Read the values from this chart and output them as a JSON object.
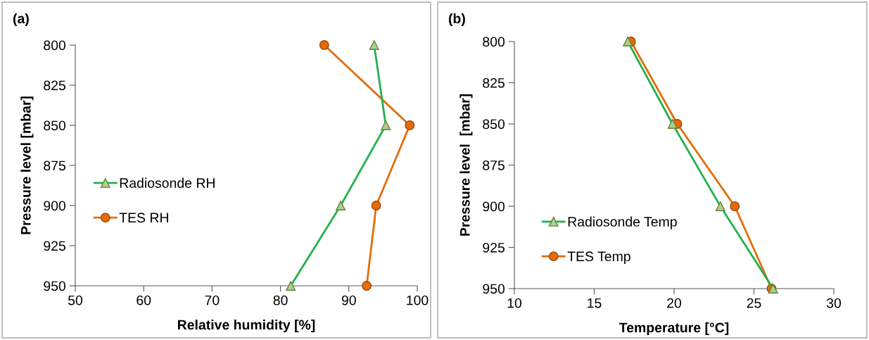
{
  "chart_data": [
    {
      "type": "line",
      "orientation": "horizontal",
      "title": "(a)",
      "xlabel": "Relative humidity [%]",
      "ylabel": "Pressure level [mbar]",
      "x": [
        800,
        850,
        900,
        950
      ],
      "xlim": [
        50,
        100
      ],
      "xticks": [
        50,
        60,
        70,
        80,
        90,
        100
      ],
      "ylim": [
        950,
        800
      ],
      "yticks": [
        800,
        825,
        850,
        875,
        900,
        925,
        950
      ],
      "grid": false,
      "legend": "center left",
      "series": [
        {
          "name": "Radiosonde RH",
          "color": "#22b14c",
          "marker": "triangle",
          "values": [
            93.7,
            95.4,
            88.8,
            81.5
          ]
        },
        {
          "name": "TES RH",
          "color": "#e46c0a",
          "marker": "circle",
          "values": [
            86.4,
            98.9,
            94.0,
            92.6
          ]
        }
      ]
    },
    {
      "type": "line",
      "orientation": "horizontal",
      "title": "(b)",
      "xlabel": "Temperature [°C]",
      "ylabel": "Pressure level  [mbar]",
      "x": [
        800,
        850,
        900,
        950
      ],
      "xlim": [
        10,
        30
      ],
      "xticks": [
        10,
        15,
        20,
        25,
        30
      ],
      "ylim": [
        950,
        800
      ],
      "yticks": [
        800,
        825,
        850,
        875,
        900,
        925,
        950
      ],
      "grid": false,
      "legend": "lower left",
      "series": [
        {
          "name": "Radiosonde Temp",
          "color": "#22b14c",
          "marker": "triangle",
          "values": [
            17.1,
            19.9,
            22.9,
            26.2
          ]
        },
        {
          "name": "TES Temp",
          "color": "#e46c0a",
          "marker": "circle",
          "values": [
            17.3,
            20.2,
            23.8,
            26.1
          ]
        }
      ]
    }
  ]
}
